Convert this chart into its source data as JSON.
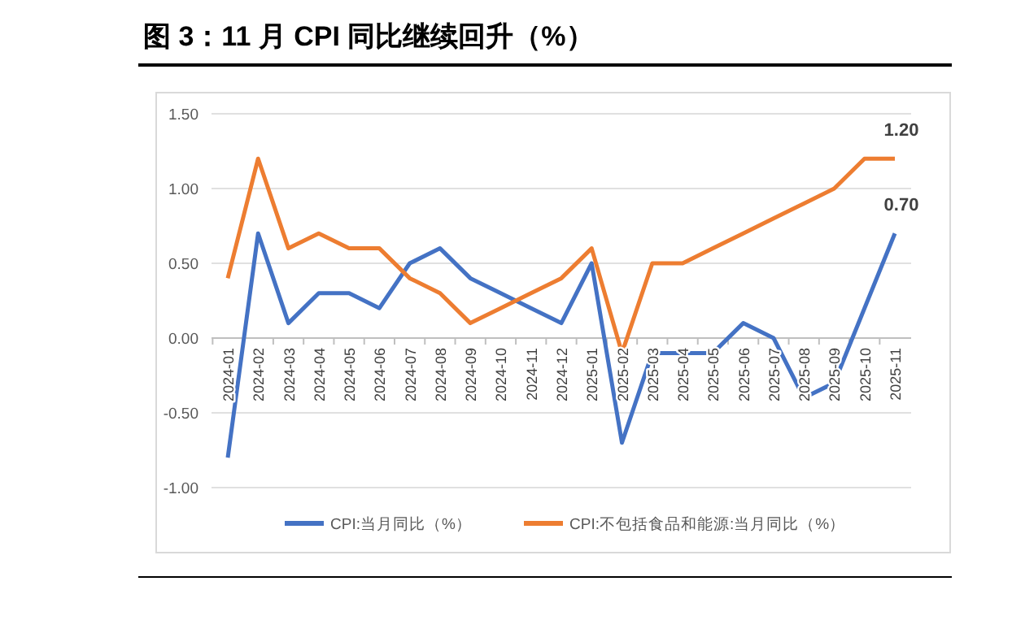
{
  "chart_data": {
    "type": "line",
    "title": "图 3：11 月 CPI 同比继续回升（%）",
    "categories": [
      "2024-01",
      "2024-02",
      "2024-03",
      "2024-04",
      "2024-05",
      "2024-06",
      "2024-07",
      "2024-08",
      "2024-09",
      "2024-10",
      "2024-11",
      "2024-12",
      "2025-01",
      "2025-02",
      "2025-03",
      "2025-04",
      "2025-05",
      "2025-06",
      "2025-07",
      "2025-08",
      "2025-09",
      "2025-10",
      "2025-11"
    ],
    "series": [
      {
        "name": "CPI:当月同比（%）",
        "color": "#4472c4",
        "values": [
          -0.8,
          0.7,
          0.1,
          0.3,
          0.3,
          0.2,
          0.5,
          0.6,
          0.4,
          0.3,
          0.2,
          0.1,
          0.5,
          -0.7,
          -0.1,
          -0.1,
          -0.1,
          0.1,
          0.0,
          -0.4,
          -0.3,
          0.2,
          0.7
        ],
        "value_labels": [
          null,
          null,
          null,
          null,
          null,
          null,
          null,
          null,
          null,
          null,
          null,
          null,
          null,
          null,
          null,
          null,
          null,
          null,
          null,
          null,
          null,
          null,
          "0.70"
        ]
      },
      {
        "name": "CPI:不包括食品和能源:当月同比（%）",
        "color": "#ed7d31",
        "values": [
          0.4,
          1.2,
          0.6,
          0.7,
          0.6,
          0.6,
          0.4,
          0.3,
          0.1,
          0.2,
          0.3,
          0.4,
          0.6,
          -0.1,
          0.5,
          0.5,
          0.6,
          0.7,
          0.8,
          0.9,
          1.0,
          1.2,
          1.2
        ],
        "value_labels": [
          null,
          null,
          null,
          null,
          null,
          null,
          null,
          null,
          null,
          null,
          null,
          null,
          null,
          null,
          null,
          null,
          null,
          null,
          null,
          null,
          null,
          null,
          "1.20"
        ]
      }
    ],
    "ylim": [
      -1,
      1.5
    ],
    "yticks": [
      {
        "value": -1,
        "label": "-1.00"
      },
      {
        "value": -0.5,
        "label": "-0.50"
      },
      {
        "value": 0,
        "label": "0.00"
      },
      {
        "value": 0.5,
        "label": "0.50"
      },
      {
        "value": 1,
        "label": "1.00"
      },
      {
        "value": 1.5,
        "label": "1.50"
      }
    ],
    "grid": "y",
    "legend": "bottom",
    "marker": "none",
    "line_style": "solid"
  }
}
